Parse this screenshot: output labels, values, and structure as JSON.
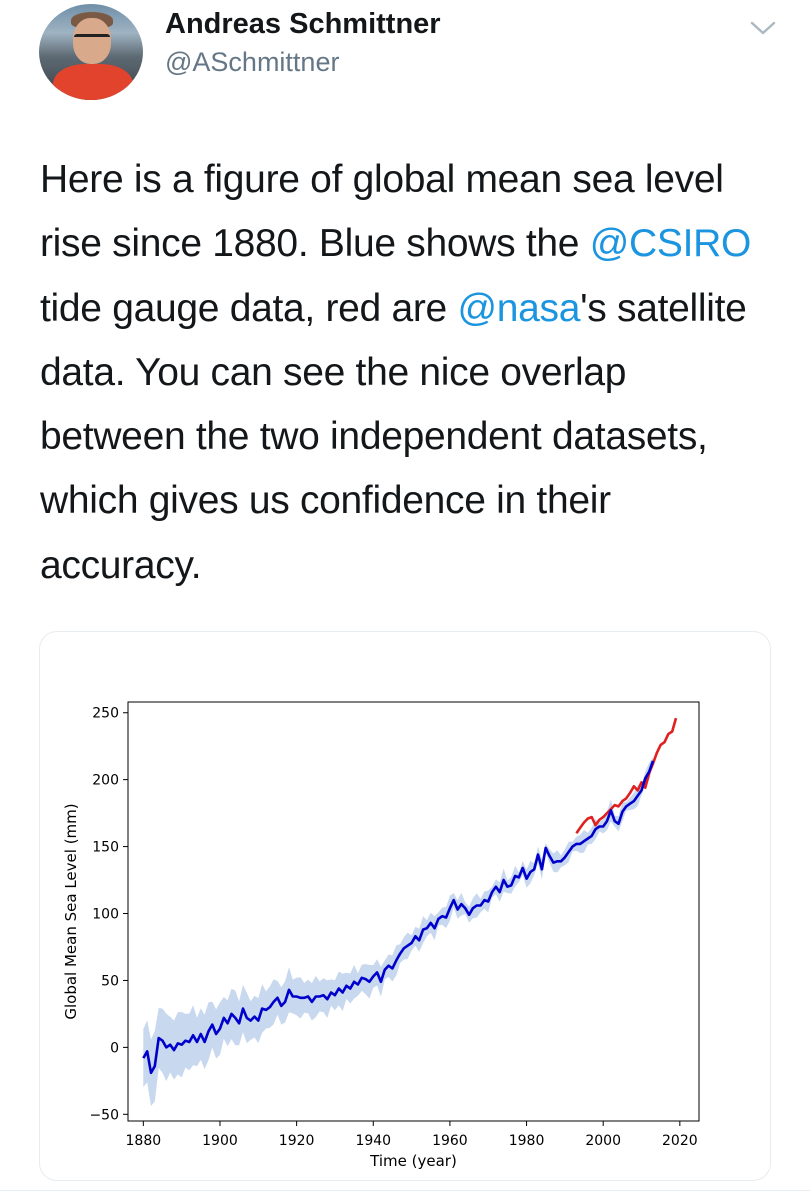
{
  "author": {
    "name": "Andreas Schmittner",
    "handle": "@ASchmittner",
    "avatar_icon": "profile-photo",
    "menu_icon": "chevron-down-icon"
  },
  "tweet": {
    "t1": "Here is a figure of global mean sea level rise since 1880. Blue shows the ",
    "m1": "@CSIRO",
    "t2": " tide gauge data, red are ",
    "m2": "@nasa",
    "t3": "'s satellite data. You can see the nice overlap between the two independent datasets, which gives us confidence in their accuracy."
  },
  "colors": {
    "link": "#1b95e0",
    "muted": "#657786",
    "tide_gauge": "#0000cc",
    "satellite": "#e02020",
    "uncertainty": "#c8d8ee"
  },
  "chart_data": {
    "type": "line",
    "xlabel": "Time (year)",
    "ylabel": "Global Mean Sea Level (mm)",
    "xlim": [
      1876,
      2025
    ],
    "ylim": [
      -55,
      258
    ],
    "xticks": [
      1880,
      1900,
      1920,
      1940,
      1960,
      1980,
      2000,
      2020
    ],
    "yticks": [
      -50,
      0,
      50,
      100,
      150,
      200,
      250
    ],
    "series": [
      {
        "color": "#0000cc",
        "band_halfwidth": [
          24,
          24,
          22,
          20,
          18,
          18,
          16,
          14,
          12,
          10,
          8,
          7,
          6,
          6,
          5
        ],
        "band_years": [
          1880,
          1885,
          1890,
          1895,
          1900,
          1905,
          1910,
          1920,
          1930,
          1940,
          1950,
          1960,
          1980,
          2000,
          2013
        ],
        "x": [
          1880,
          1881,
          1882,
          1883,
          1884,
          1885,
          1886,
          1887,
          1888,
          1889,
          1890,
          1891,
          1892,
          1893,
          1894,
          1895,
          1896,
          1897,
          1898,
          1899,
          1900,
          1901,
          1902,
          1903,
          1904,
          1905,
          1906,
          1907,
          1908,
          1909,
          1910,
          1911,
          1912,
          1913,
          1914,
          1915,
          1916,
          1917,
          1918,
          1919,
          1920,
          1921,
          1922,
          1923,
          1924,
          1925,
          1926,
          1927,
          1928,
          1929,
          1930,
          1931,
          1932,
          1933,
          1934,
          1935,
          1936,
          1937,
          1938,
          1939,
          1940,
          1941,
          1942,
          1943,
          1944,
          1945,
          1946,
          1947,
          1948,
          1949,
          1950,
          1951,
          1952,
          1953,
          1954,
          1955,
          1956,
          1957,
          1958,
          1959,
          1960,
          1961,
          1962,
          1963,
          1964,
          1965,
          1966,
          1967,
          1968,
          1969,
          1970,
          1971,
          1972,
          1973,
          1974,
          1975,
          1976,
          1977,
          1978,
          1979,
          1980,
          1981,
          1982,
          1983,
          1984,
          1985,
          1986,
          1987,
          1988,
          1989,
          1990,
          1991,
          1992,
          1993,
          1994,
          1995,
          1996,
          1997,
          1998,
          1999,
          2000,
          2001,
          2002,
          2003,
          2004,
          2005,
          2006,
          2007,
          2008,
          2009,
          2010,
          2011,
          2012,
          2013
        ],
        "values": [
          -8,
          -3,
          -19,
          -14,
          7,
          5,
          0,
          2,
          -2,
          3,
          2,
          5,
          4,
          9,
          4,
          10,
          4,
          12,
          17,
          10,
          14,
          22,
          18,
          25,
          22,
          18,
          29,
          22,
          20,
          23,
          20,
          29,
          28,
          30,
          34,
          37,
          31,
          34,
          43,
          38,
          38,
          37,
          37,
          38,
          34,
          38,
          38,
          39,
          36,
          41,
          39,
          44,
          41,
          46,
          44,
          49,
          47,
          52,
          51,
          49,
          53,
          56,
          49,
          58,
          61,
          59,
          65,
          70,
          74,
          76,
          78,
          83,
          80,
          88,
          89,
          93,
          89,
          96,
          98,
          97,
          104,
          110,
          103,
          107,
          104,
          99,
          104,
          106,
          106,
          110,
          109,
          116,
          120,
          116,
          125,
          120,
          121,
          128,
          127,
          134,
          126,
          131,
          133,
          144,
          133,
          149,
          143,
          138,
          139,
          139,
          142,
          146,
          150,
          152,
          152,
          154,
          156,
          158,
          163,
          165,
          165,
          169,
          177,
          169,
          167,
          176,
          180,
          182,
          184,
          188,
          192,
          201,
          206,
          214
        ]
      },
      {
        "color": "#e02020",
        "x": [
          1993,
          1994,
          1995,
          1996,
          1997,
          1998,
          1999,
          2000,
          2001,
          2002,
          2003,
          2004,
          2005,
          2006,
          2007,
          2008,
          2009,
          2010,
          2011,
          2012,
          2013,
          2014,
          2015,
          2016,
          2017,
          2018,
          2019
        ],
        "values": [
          160,
          164,
          168,
          171,
          172,
          166,
          170,
          172,
          175,
          178,
          181,
          180,
          184,
          186,
          190,
          195,
          192,
          198,
          194,
          205,
          212,
          220,
          226,
          228,
          234,
          236,
          246
        ]
      }
    ]
  }
}
